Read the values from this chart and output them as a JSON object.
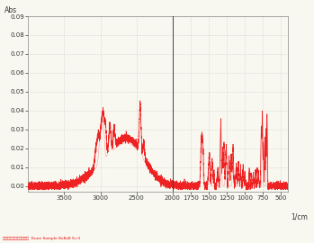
{
  "xlabel": "1/cm",
  "ylabel": "Abs",
  "xmin": 400,
  "xmax": 4000,
  "ymin": -0.003,
  "ymax": 0.09,
  "yticks": [
    0.0,
    0.01,
    0.02,
    0.03,
    0.04,
    0.05,
    0.06,
    0.07,
    0.08,
    0.09
  ],
  "xticks": [
    500,
    750,
    1000,
    1250,
    1500,
    1750,
    2000,
    2500,
    3000,
    3500
  ],
  "line_color": "#EE2222",
  "line_color2": "#FFAAAA",
  "bg_color": "#F8F8F0",
  "grid_color": "#BBBBBB",
  "vline_x": 2000,
  "label_text": "塩酸ジフェンヒドラミン  Dune Sample 8x8x8 S=3",
  "label_color": "#EE0000"
}
